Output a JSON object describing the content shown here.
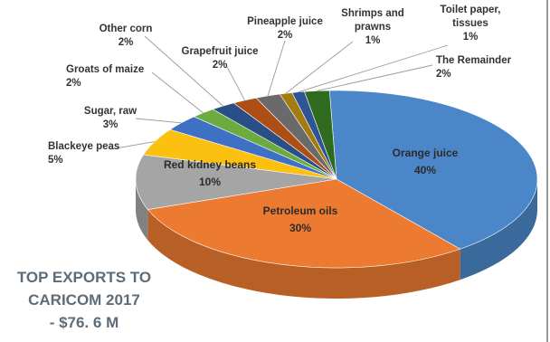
{
  "chart_data": {
    "type": "pie",
    "title": "TOP EXPORTS TO\nCARICOM 2017\n- $76. 6 M",
    "slices": [
      {
        "label": "Orange juice",
        "value": 40,
        "display": "40%",
        "color": "#4a86c8"
      },
      {
        "label": "Petroleum oils",
        "value": 30,
        "display": "30%",
        "color": "#ec7a30"
      },
      {
        "label": "Red kidney beans",
        "value": 10,
        "display": "10%",
        "color": "#a5a5a5"
      },
      {
        "label": "Blackeye peas",
        "value": 5,
        "display": "5%",
        "color": "#fcc010"
      },
      {
        "label": "Sugar, raw",
        "value": 3,
        "display": "3%",
        "color": "#3e70c4"
      },
      {
        "label": "Groats of maize",
        "value": 2,
        "display": "2%",
        "color": "#6cab3f"
      },
      {
        "label": "Other corn",
        "value": 2,
        "display": "2%",
        "color": "#2a4f86"
      },
      {
        "label": "Grapefruit juice",
        "value": 2,
        "display": "2%",
        "color": "#ad4e17"
      },
      {
        "label": "Pineapple juice",
        "value": 2,
        "display": "2%",
        "color": "#6a6a6a"
      },
      {
        "label": "Shrimps and\nprawns",
        "value": 1,
        "display": "1%",
        "color": "#a27c10"
      },
      {
        "label": "Toilet paper,\ntissues",
        "value": 1,
        "display": "1%",
        "color": "#2f5496"
      },
      {
        "label": "The Remainder",
        "value": 2,
        "display": "2%",
        "color": "#2f6b1f"
      }
    ]
  }
}
